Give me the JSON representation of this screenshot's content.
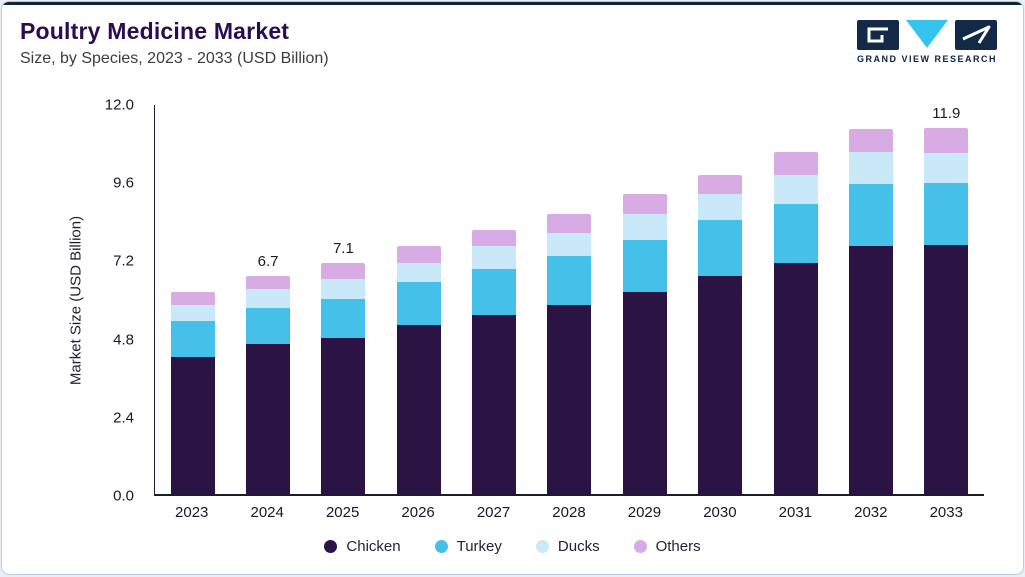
{
  "header": {
    "title": "Poultry Medicine Market",
    "subtitle": "Size, by Species, 2023 - 2033 (USD Billion)",
    "brand": "GRAND VIEW RESEARCH"
  },
  "chart_data": {
    "type": "bar",
    "stacked": true,
    "title": "Poultry Medicine Market",
    "subtitle": "Size, by Species, 2023 - 2033 (USD Billion)",
    "xlabel": "",
    "ylabel": "Market Size (USD Billion)",
    "categories": [
      "2023",
      "2024",
      "2025",
      "2026",
      "2027",
      "2028",
      "2029",
      "2030",
      "2031",
      "2032",
      "2033"
    ],
    "series": [
      {
        "name": "Chicken",
        "color": "#2b1444",
        "values": [
          4.2,
          4.6,
          4.8,
          5.2,
          5.5,
          5.8,
          6.2,
          6.7,
          7.1,
          7.6,
          8.1
        ]
      },
      {
        "name": "Turkey",
        "color": "#45c0e8",
        "values": [
          1.1,
          1.1,
          1.2,
          1.3,
          1.4,
          1.5,
          1.6,
          1.7,
          1.8,
          1.9,
          2.0
        ]
      },
      {
        "name": "Ducks",
        "color": "#c9e9f9",
        "values": [
          0.5,
          0.6,
          0.6,
          0.6,
          0.7,
          0.7,
          0.8,
          0.8,
          0.9,
          1.0,
          1.0
        ]
      },
      {
        "name": "Others",
        "color": "#d8abe4",
        "values": [
          0.4,
          0.4,
          0.5,
          0.5,
          0.5,
          0.6,
          0.6,
          0.6,
          0.7,
          0.7,
          0.8
        ]
      }
    ],
    "totals": [
      6.2,
      6.7,
      7.1,
      7.6,
      8.1,
      8.6,
      9.2,
      9.8,
      10.5,
      11.2,
      11.9
    ],
    "value_labels": [
      "",
      "6.7",
      "7.1",
      "",
      "",
      "",
      "",
      "",
      "",
      "",
      "11.9"
    ],
    "yticks": [
      "0.0",
      "2.4",
      "4.8",
      "7.2",
      "9.6",
      "12.0"
    ],
    "ylim": [
      0,
      12.0
    ],
    "grid": false,
    "legend_position": "bottom"
  }
}
